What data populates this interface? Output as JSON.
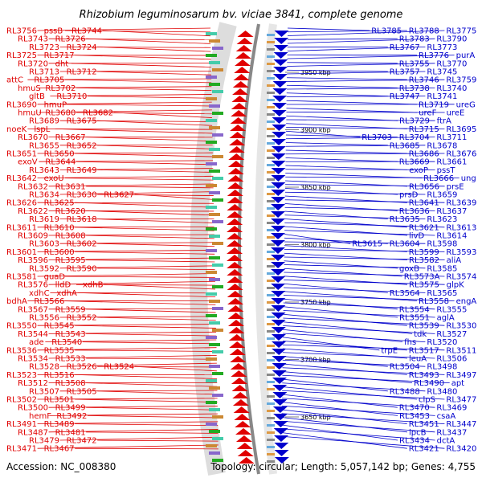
{
  "title": "Rhizobium leguminosarum bv. viciae 3841, complete genome",
  "footer": {
    "accession": "Accession: NC_008380",
    "summary": "Topology: circular; Length: 5,057,142 bp; Genes: 4,755"
  },
  "colors": {
    "forward_strand": "#e00000",
    "reverse_strand": "#0000cc",
    "backbone": "#888888",
    "gc_marker": "#22aa22"
  },
  "kbp_ticks": [
    "3950 kbp",
    "3900 kbp",
    "3850 kbp",
    "3800 kbp",
    "3750 kbp",
    "3700 kbp",
    "3650 kbp"
  ],
  "labels_left": [
    "RL3756",
    "pssB",
    "RL3744",
    "RL3743",
    "RL3726",
    "RL3723",
    "RL3724",
    "RL3725",
    "RL3717",
    "RL3720",
    "dht",
    "RL3713",
    "RL3712",
    "attC",
    "RL3705",
    "hmuS",
    "RL3702",
    "gltB",
    "RL3710",
    "RL3690",
    "hmuP",
    "hmuU",
    "RL3680",
    "RL3682",
    "RL3689",
    "RL3675",
    "noeK",
    "lspL",
    "RL3670",
    "RL3667",
    "RL3655",
    "RL3652",
    "RL3651",
    "RL3650",
    "exoV",
    "RL3644",
    "RL3643",
    "RL3649",
    "RL3642",
    "exoU",
    "RL3632",
    "RL3631",
    "RL3634",
    "RL3630",
    "RL3627",
    "RL3626",
    "RL3625",
    "RL3622",
    "RL3620",
    "RL3619",
    "RL3618",
    "RL3611",
    "RL3610",
    "RL3609",
    "RL3608",
    "RL3603",
    "RL3602",
    "RL3601",
    "RL3600",
    "RL3596",
    "RL3595",
    "RL3592",
    "RL3590",
    "RL3581",
    "guaD",
    "RL3576",
    "lldD",
    "xdhB",
    "xdhC",
    "xdhA",
    "bdhA",
    "RL3566",
    "RL3567",
    "RL3559",
    "RL3556",
    "RL3552",
    "RL3550",
    "RL3545",
    "RL3544",
    "RL3543",
    "ade",
    "RL3540",
    "RL3536",
    "RL3535",
    "RL3534",
    "RL3533",
    "RL3528",
    "RL3526",
    "RL3524",
    "RL3523",
    "RL3516",
    "RL3512",
    "RL3508",
    "RL3507",
    "RL3505",
    "RL3502",
    "RL3501",
    "RL3500",
    "RL3499",
    "hemF",
    "RL3492",
    "RL3491",
    "RL3489",
    "RL3487",
    "RL3481",
    "RL3479",
    "RL3472",
    "RL3471",
    "RL3467"
  ],
  "labels_right": [
    "RL3785",
    "RL3788",
    "RL3775",
    "RL3783",
    "RL3790",
    "RL3767",
    "RL3773",
    "RL3776",
    "purA",
    "RL3755",
    "RL3770",
    "RL3757",
    "RL3745",
    "RL3746",
    "RL3759",
    "RL3738",
    "RL3740",
    "RL3747",
    "RL3741",
    "RL3719",
    "ureG",
    "ureF",
    "ureE",
    "RL3729",
    "ftrA",
    "RL3715",
    "RL3695",
    "RL3703",
    "RL3704",
    "RL3711",
    "RL3685",
    "RL3678",
    "RL3686",
    "RL3676",
    "RL3669",
    "RL3661",
    "exoP",
    "pssT",
    "RL3666",
    "ung",
    "RL3656",
    "prsE",
    "prsD",
    "RL3659",
    "RL3641",
    "RL3639",
    "RL3636",
    "RL3637",
    "RL3635",
    "RL3623",
    "RL3621",
    "RL3613",
    "livD",
    "RL3614",
    "RL3615",
    "RL3604",
    "RL3598",
    "RL3599",
    "RL3593",
    "RL3582",
    "aliA",
    "goxB",
    "RL3585",
    "RL3573A",
    "RL3574",
    "RL3575",
    "glpK",
    "RL3564",
    "RL3565",
    "RL3558",
    "engA",
    "RL3554",
    "RL3555",
    "RL3551",
    "aglA",
    "RL3539",
    "RL3530",
    "tdk",
    "RL3527",
    "fhs",
    "RL3520",
    "trpE",
    "RL3517",
    "RL3511",
    "leuA",
    "RL3506",
    "RL3504",
    "RL3498",
    "RL3493",
    "RL3497",
    "RL3490",
    "apt",
    "RL3488",
    "RL3480",
    "clpS",
    "RL3477",
    "RL3470",
    "RL3469",
    "RL3453",
    "csaA",
    "RL3451",
    "RL3447",
    "lpcB",
    "RL3437",
    "RL3434",
    "dctA",
    "RL3421",
    "RL3420"
  ]
}
